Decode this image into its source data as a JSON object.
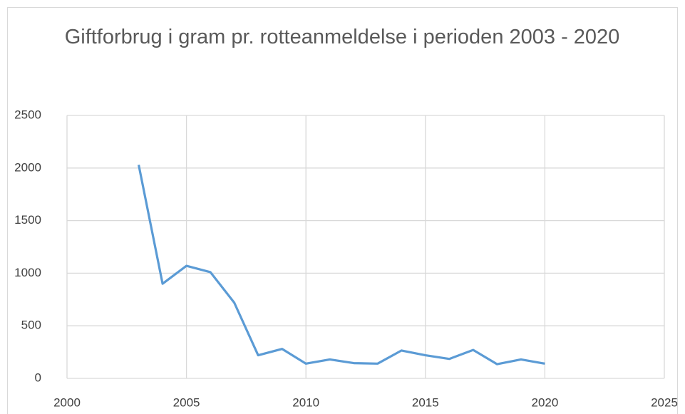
{
  "chart_data": {
    "type": "line",
    "title": "Giftforbrug i gram pr. rotteanmeldelse i perioden 2003 - 2020",
    "x": [
      2003,
      2004,
      2005,
      2006,
      2007,
      2008,
      2009,
      2010,
      2011,
      2012,
      2013,
      2014,
      2015,
      2016,
      2017,
      2018,
      2019,
      2020
    ],
    "values": [
      2030,
      900,
      1070,
      1010,
      720,
      220,
      280,
      140,
      180,
      145,
      140,
      265,
      220,
      185,
      270,
      135,
      180,
      140
    ],
    "color": "#5b9bd5",
    "xlim": [
      2000,
      2025
    ],
    "xticks": [
      2000,
      2005,
      2010,
      2015,
      2020,
      2025
    ],
    "ylim": [
      0,
      2500
    ],
    "yticks": [
      0,
      500,
      1000,
      1500,
      2000,
      2500
    ],
    "grid": true
  }
}
